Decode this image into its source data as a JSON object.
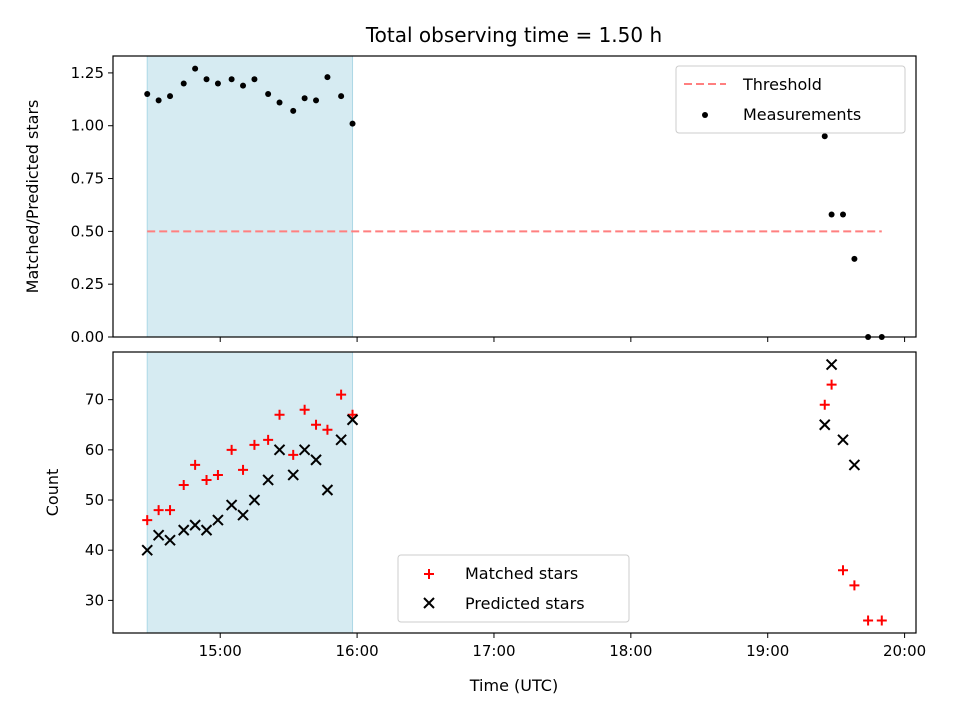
{
  "title": "Total observing time = 1.50 h",
  "xlabel": "Time (UTC)",
  "x_ticks": [
    "15:00",
    "16:00",
    "17:00",
    "18:00",
    "19:00",
    "20:00"
  ],
  "colors": {
    "matched": "#ff0000",
    "predicted": "#000000",
    "threshold": "#ff7f7f",
    "highlight": "#add8e6",
    "measurements": "#000000"
  },
  "chart_data": [
    {
      "type": "scatter",
      "ylabel": "Matched/Predicted stars",
      "ylim": [
        0,
        1.33
      ],
      "y_ticks": [
        "0.00",
        "0.25",
        "0.50",
        "0.75",
        "1.00",
        "1.25"
      ],
      "legend_position": "top-right",
      "highlight_span": {
        "x_start": "14:28",
        "x_end": "15:58"
      },
      "threshold": {
        "name": "Threshold",
        "value": 0.5,
        "x_start": "14:28",
        "x_end": "19:50"
      },
      "series": [
        {
          "name": "Measurements",
          "x": [
            "14:28",
            "14:33",
            "14:38",
            "14:44",
            "14:49",
            "14:54",
            "14:59",
            "15:05",
            "15:10",
            "15:15",
            "15:21",
            "15:26",
            "15:32",
            "15:37",
            "15:42",
            "15:47",
            "15:53",
            "15:58",
            "19:25",
            "19:28",
            "19:33",
            "19:38",
            "19:44",
            "19:50"
          ],
          "y": [
            1.15,
            1.12,
            1.14,
            1.2,
            1.27,
            1.22,
            1.2,
            1.22,
            1.19,
            1.22,
            1.15,
            1.11,
            1.07,
            1.13,
            1.12,
            1.23,
            1.14,
            1.01,
            0.95,
            0.58,
            0.58,
            0.37,
            0.0,
            0.0
          ]
        }
      ]
    },
    {
      "type": "scatter",
      "ylabel": "Count",
      "ylim": [
        23.5,
        79.5
      ],
      "y_ticks": [
        "30",
        "40",
        "50",
        "60",
        "70"
      ],
      "legend_position": "lower-center",
      "highlight_span": {
        "x_start": "14:28",
        "x_end": "15:58"
      },
      "series": [
        {
          "name": "Matched stars",
          "x": [
            "14:28",
            "14:33",
            "14:38",
            "14:44",
            "14:49",
            "14:54",
            "14:59",
            "15:05",
            "15:10",
            "15:15",
            "15:21",
            "15:26",
            "15:32",
            "15:37",
            "15:42",
            "15:47",
            "15:53",
            "15:58",
            "19:25",
            "19:28",
            "19:33",
            "19:38",
            "19:44",
            "19:50"
          ],
          "y": [
            46,
            48,
            48,
            53,
            57,
            54,
            55,
            60,
            56,
            61,
            62,
            67,
            59,
            68,
            65,
            64,
            71,
            67,
            69,
            73,
            36,
            33,
            26,
            26
          ]
        },
        {
          "name": "Predicted stars",
          "x": [
            "14:28",
            "14:33",
            "14:38",
            "14:44",
            "14:49",
            "14:54",
            "14:59",
            "15:05",
            "15:10",
            "15:15",
            "15:21",
            "15:26",
            "15:32",
            "15:37",
            "15:42",
            "15:47",
            "15:53",
            "15:58",
            "19:25",
            "19:28",
            "19:33",
            "19:38"
          ],
          "y": [
            40,
            43,
            42,
            44,
            45,
            44,
            46,
            49,
            47,
            50,
            54,
            60,
            55,
            60,
            58,
            52,
            62,
            66,
            65,
            77,
            62,
            57
          ]
        }
      ]
    }
  ]
}
